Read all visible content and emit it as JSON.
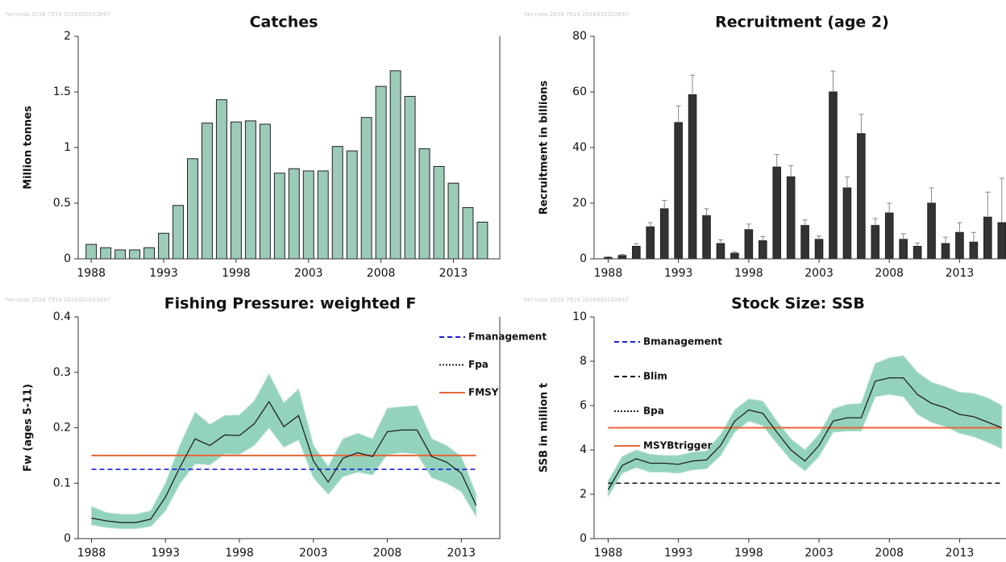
{
  "chart_data": [
    {
      "type": "bar",
      "title": "Catches",
      "watermark": "her-noss 2016 7919 2016920102647",
      "ylabel": "Million tonnes",
      "x": [
        1988,
        1989,
        1990,
        1991,
        1992,
        1993,
        1994,
        1995,
        1996,
        1997,
        1998,
        1999,
        2000,
        2001,
        2002,
        2003,
        2004,
        2005,
        2006,
        2007,
        2008,
        2009,
        2010,
        2011,
        2012,
        2013,
        2014,
        2015
      ],
      "values": [
        0.13,
        0.1,
        0.08,
        0.08,
        0.1,
        0.23,
        0.48,
        0.9,
        1.22,
        1.43,
        1.23,
        1.24,
        1.21,
        0.77,
        0.81,
        0.79,
        0.79,
        1.01,
        0.97,
        1.27,
        1.55,
        1.69,
        1.46,
        0.99,
        0.83,
        0.68,
        0.46,
        0.33
      ],
      "color": "#9ccbb8",
      "xlim": [
        1987.1,
        2016.2
      ],
      "xticks": [
        1988,
        1993,
        1998,
        2003,
        2008,
        2013
      ],
      "ylim": [
        0,
        2
      ],
      "yticks": [
        0,
        0.5,
        1,
        1.5,
        2
      ]
    },
    {
      "type": "bar",
      "title": "Recruitment (age 2)",
      "watermark": "her-noss 2016 7919 2016920102647",
      "ylabel": "Recruitment in billions",
      "x": [
        1988,
        1989,
        1990,
        1991,
        1992,
        1993,
        1994,
        1995,
        1996,
        1997,
        1998,
        1999,
        2000,
        2001,
        2002,
        2003,
        2004,
        2005,
        2006,
        2007,
        2008,
        2009,
        2010,
        2011,
        2012,
        2013,
        2014,
        2015,
        2016
      ],
      "values": [
        0.5,
        1.2,
        4.5,
        11.5,
        18,
        49,
        59,
        15.5,
        5.5,
        2,
        10.5,
        6.5,
        33,
        29.5,
        12,
        7,
        60,
        25.5,
        45,
        12,
        16.5,
        7,
        4.5,
        20,
        5.5,
        9.5,
        6,
        15,
        13
      ],
      "errors": [
        0.3,
        0.4,
        1,
        1.5,
        3,
        6,
        7,
        2.5,
        1.3,
        0.5,
        2,
        1.5,
        4.5,
        4,
        2,
        1.2,
        7.5,
        4,
        7,
        2.5,
        3.5,
        2,
        1.2,
        5.5,
        2.3,
        3.5,
        3.5,
        9,
        16
      ],
      "color": "#333333",
      "xlim": [
        1987.0,
        2016.3
      ],
      "xticks": [
        1988,
        1993,
        1998,
        2003,
        2008,
        2013
      ],
      "ylim": [
        0,
        80
      ],
      "yticks": [
        0,
        20,
        40,
        60,
        80
      ]
    },
    {
      "type": "line",
      "title": "Fishing Pressure: weighted F",
      "watermark": "her-noss 2016 7919 2016920102647",
      "ylabel": "Fw (ages 5-11)",
      "x": [
        1988,
        1989,
        1990,
        1991,
        1992,
        1993,
        1994,
        1995,
        1996,
        1997,
        1998,
        1999,
        2000,
        2001,
        2002,
        2003,
        2004,
        2005,
        2006,
        2007,
        2008,
        2009,
        2010,
        2011,
        2012,
        2013,
        2014
      ],
      "values": [
        0.037,
        0.032,
        0.029,
        0.029,
        0.035,
        0.075,
        0.13,
        0.18,
        0.168,
        0.187,
        0.186,
        0.207,
        0.247,
        0.202,
        0.222,
        0.14,
        0.102,
        0.145,
        0.155,
        0.148,
        0.193,
        0.196,
        0.196,
        0.148,
        0.138,
        0.118,
        0.06
      ],
      "upper": [
        0.058,
        0.047,
        0.044,
        0.044,
        0.05,
        0.1,
        0.17,
        0.228,
        0.206,
        0.222,
        0.223,
        0.248,
        0.297,
        0.245,
        0.27,
        0.168,
        0.13,
        0.18,
        0.19,
        0.18,
        0.235,
        0.238,
        0.24,
        0.18,
        0.168,
        0.148,
        0.08
      ],
      "lower": [
        0.025,
        0.02,
        0.018,
        0.018,
        0.022,
        0.05,
        0.1,
        0.135,
        0.133,
        0.153,
        0.152,
        0.168,
        0.2,
        0.165,
        0.178,
        0.11,
        0.08,
        0.112,
        0.12,
        0.115,
        0.152,
        0.155,
        0.153,
        0.11,
        0.1,
        0.085,
        0.04
      ],
      "color": "#222222",
      "band_color": "#93d3bc",
      "reference_lines": [
        {
          "name": "Fmanagement",
          "value": 0.125,
          "color": "#1f1fdd",
          "style": "dashed"
        },
        {
          "name": "Fpa",
          "value": 0.15,
          "color": "#222222",
          "style": "dotted"
        },
        {
          "name": "FMSY",
          "value": 0.15,
          "color": "#e8663a",
          "style": "solid"
        }
      ],
      "legend": "upper right",
      "xlim": [
        1987.1,
        2015.6
      ],
      "xticks": [
        1988,
        1993,
        1998,
        2003,
        2008,
        2013
      ],
      "ylim": [
        0,
        0.4
      ],
      "yticks": [
        0,
        0.1,
        0.2,
        0.3,
        0.4
      ]
    },
    {
      "type": "line",
      "title": "Stock Size: SSB",
      "watermark": "her-noss 2016 7919 2016920102647",
      "ylabel": "SSB in million t",
      "x": [
        1988,
        1989,
        1990,
        1991,
        1992,
        1993,
        1994,
        1995,
        1996,
        1997,
        1998,
        1999,
        2000,
        2001,
        2002,
        2003,
        2004,
        2005,
        2006,
        2007,
        2008,
        2009,
        2010,
        2011,
        2012,
        2013,
        2014,
        2015,
        2016
      ],
      "values": [
        2.2,
        3.3,
        3.6,
        3.4,
        3.4,
        3.35,
        3.5,
        3.55,
        4.2,
        5.3,
        5.8,
        5.65,
        4.8,
        4.0,
        3.5,
        4.2,
        5.3,
        5.45,
        5.45,
        7.1,
        7.25,
        7.25,
        6.5,
        6.1,
        5.9,
        5.6,
        5.5,
        5.25,
        5.0
      ],
      "upper": [
        2.6,
        3.7,
        4.0,
        3.8,
        3.75,
        3.75,
        3.9,
        3.95,
        4.7,
        5.8,
        6.3,
        6.2,
        5.3,
        4.5,
        4.0,
        4.7,
        5.85,
        6.05,
        6.1,
        7.9,
        8.15,
        8.25,
        7.5,
        7.05,
        6.85,
        6.6,
        6.55,
        6.35,
        6.0
      ],
      "lower": [
        1.9,
        2.95,
        3.2,
        3.0,
        3.0,
        2.95,
        3.1,
        3.15,
        3.75,
        4.8,
        5.3,
        5.1,
        4.3,
        3.55,
        3.05,
        3.7,
        4.8,
        4.85,
        4.85,
        6.4,
        6.5,
        6.4,
        5.6,
        5.25,
        5.05,
        4.75,
        4.6,
        4.35,
        4.05
      ],
      "color": "#222222",
      "band_color": "#93d3bc",
      "reference_lines": [
        {
          "name": "Bmanagement",
          "value": 5,
          "color": "#1f1fdd",
          "style": "dashed"
        },
        {
          "name": "Blim",
          "value": 2.5,
          "color": "#111111",
          "style": "dashed"
        },
        {
          "name": "Bpa",
          "value": 5,
          "color": "#222222",
          "style": "dotted"
        },
        {
          "name": "MSYBtrigger",
          "value": 5,
          "color": "#e8663a",
          "style": "solid"
        }
      ],
      "legend": "upper left",
      "xlim": [
        1987.0,
        2016.3
      ],
      "xticks": [
        1988,
        1993,
        1998,
        2003,
        2008,
        2013
      ],
      "ylim": [
        0,
        10
      ],
      "yticks": [
        0,
        2,
        4,
        6,
        8,
        10
      ]
    }
  ]
}
